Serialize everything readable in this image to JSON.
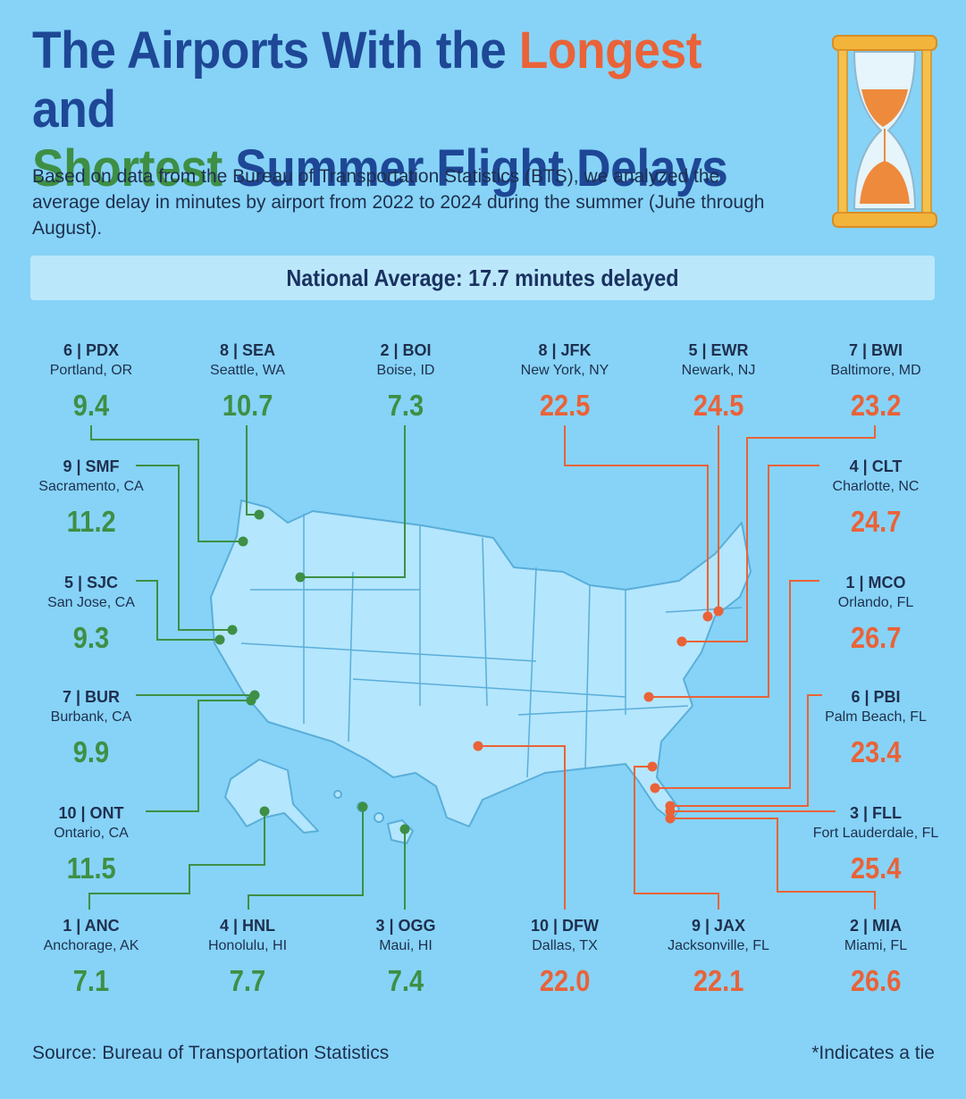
{
  "title": {
    "line1_a": "The Airports With the ",
    "line1_b": "Longest",
    "line1_c": " and",
    "line2_a": "Shortest",
    "line2_b": " Summer Flight Delays"
  },
  "subtitle": "Based on data from the Bureau of Transportation Statistics (BTS), we analyzed the average delay in minutes by airport from 2022 to 2024 during the summer (June through August).",
  "national_average": "National Average: 17.7 minutes delayed",
  "colors": {
    "shortest": "#3e8f45",
    "longest": "#ea6238",
    "title": "#1e4796",
    "map_fill": "#b4e6fd",
    "map_stroke": "#5aaed9"
  },
  "airports": [
    {
      "id": "pdx",
      "code": "6 | PDX",
      "city": "Portland, OR",
      "value": "9.4",
      "group": "short"
    },
    {
      "id": "sea",
      "code": "8 | SEA",
      "city": "Seattle, WA",
      "value": "10.7",
      "group": "short"
    },
    {
      "id": "boi",
      "code": "2 | BOI",
      "city": "Boise, ID",
      "value": "7.3",
      "group": "short"
    },
    {
      "id": "jfk",
      "code": "8 | JFK",
      "city": "New York, NY",
      "value": "22.5",
      "group": "long"
    },
    {
      "id": "ewr",
      "code": "5 | EWR",
      "city": "Newark, NJ",
      "value": "24.5",
      "group": "long"
    },
    {
      "id": "bwi",
      "code": "7 | BWI",
      "city": "Baltimore, MD",
      "value": "23.2",
      "group": "long"
    },
    {
      "id": "smf",
      "code": "9 | SMF",
      "city": "Sacramento, CA",
      "value": "11.2",
      "group": "short"
    },
    {
      "id": "clt",
      "code": "4 | CLT",
      "city": "Charlotte, NC",
      "value": "24.7",
      "group": "long"
    },
    {
      "id": "sjc",
      "code": "5 | SJC",
      "city": "San Jose, CA",
      "value": "9.3",
      "group": "short"
    },
    {
      "id": "mco",
      "code": "1 | MCO",
      "city": "Orlando, FL",
      "value": "26.7",
      "group": "long"
    },
    {
      "id": "bur",
      "code": "7 | BUR",
      "city": "Burbank, CA",
      "value": "9.9",
      "group": "short"
    },
    {
      "id": "pbi",
      "code": "6 | PBI",
      "city": "Palm Beach, FL",
      "value": "23.4",
      "group": "long"
    },
    {
      "id": "ont",
      "code": "10 | ONT",
      "city": "Ontario, CA",
      "value": "11.5",
      "group": "short"
    },
    {
      "id": "fll",
      "code": "3 | FLL",
      "city": "Fort Lauderdale, FL",
      "value": "25.4",
      "group": "long"
    },
    {
      "id": "anc",
      "code": "1 | ANC",
      "city": "Anchorage, AK",
      "value": "7.1",
      "group": "short"
    },
    {
      "id": "hnl",
      "code": "4 | HNL",
      "city": "Honolulu, HI",
      "value": "7.7",
      "group": "short"
    },
    {
      "id": "ogg",
      "code": "3 | OGG",
      "city": "Maui, HI",
      "value": "7.4",
      "group": "short"
    },
    {
      "id": "dfw",
      "code": "10 | DFW",
      "city": "Dallas, TX",
      "value": "22.0",
      "group": "long"
    },
    {
      "id": "jax",
      "code": "9 | JAX",
      "city": "Jacksonville, FL",
      "value": "22.1",
      "group": "long"
    },
    {
      "id": "mia",
      "code": "2 | MIA",
      "city": "Miami, FL",
      "value": "26.6",
      "group": "long"
    }
  ],
  "source": "Source: Bureau of Transportation Statistics",
  "note": "*Indicates a tie"
}
